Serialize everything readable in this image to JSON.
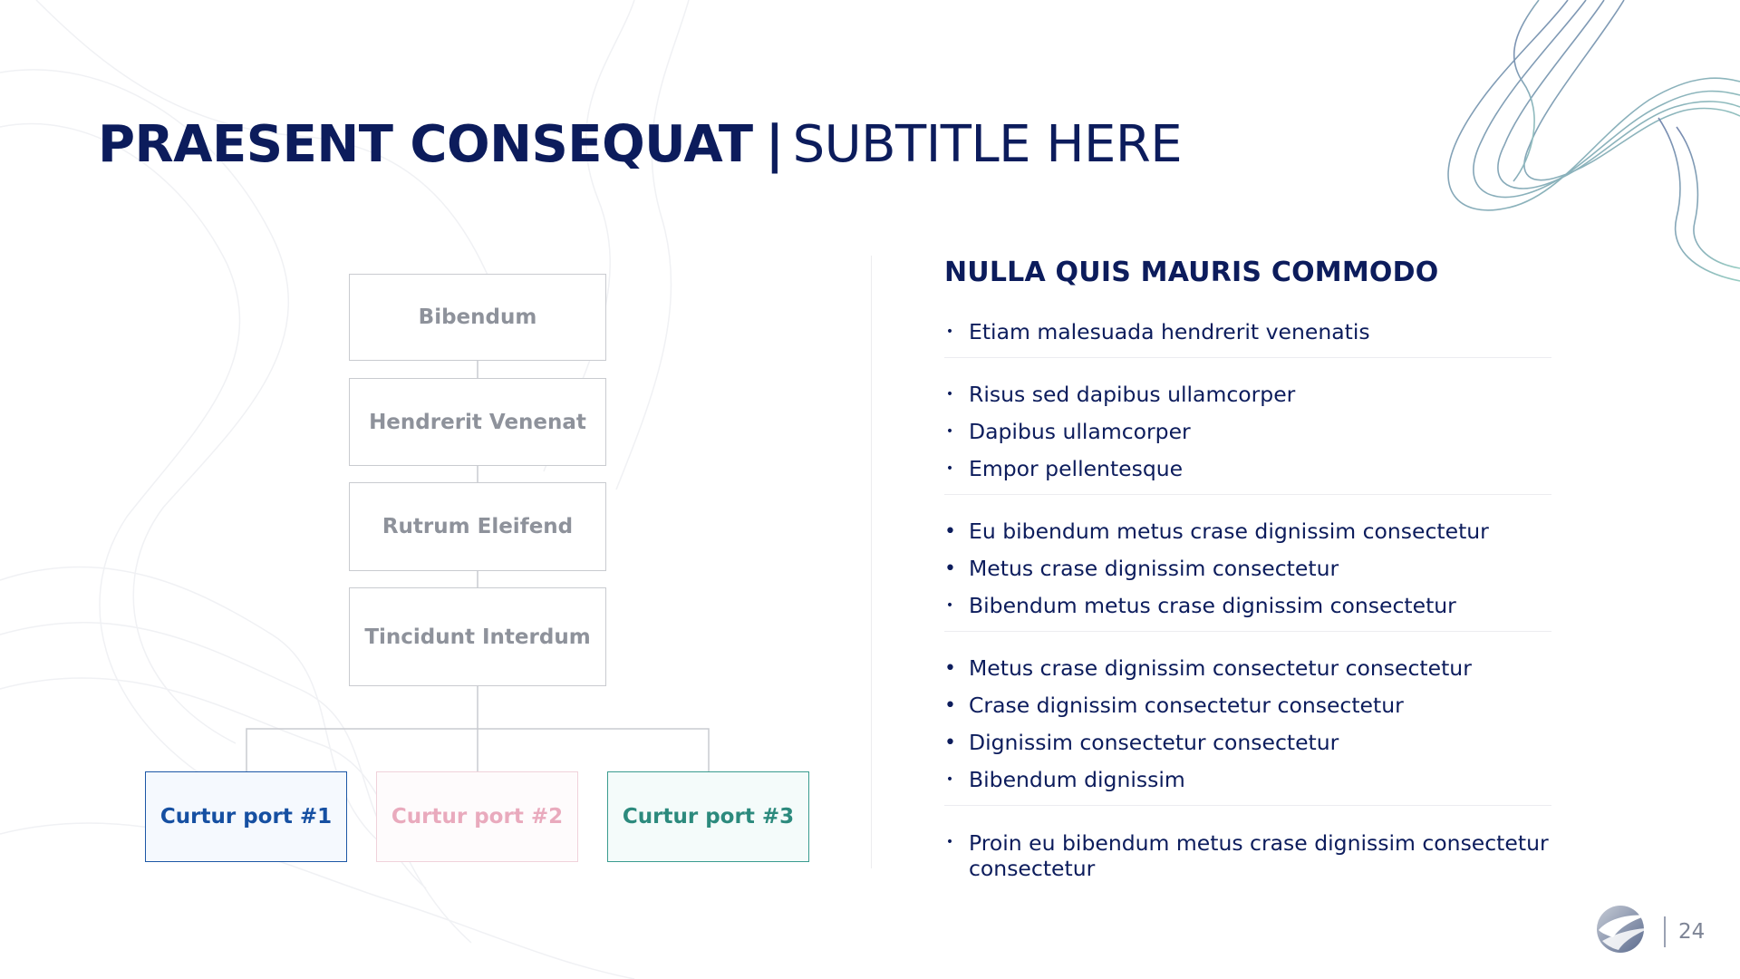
{
  "slide": {
    "title": "PRAESENT CONSEQUAT",
    "separator": "|",
    "subtitle": "SUBTITLE HERE",
    "page_number": "24"
  },
  "flowchart": {
    "nodes": [
      {
        "id": "n1",
        "label": "Bibendum"
      },
      {
        "id": "n2",
        "label": "Hendrerit Venenat"
      },
      {
        "id": "n3",
        "label": "Rutrum Eleifend"
      },
      {
        "id": "n4",
        "label": "Tincidunt Interdum"
      },
      {
        "id": "b1",
        "label": "Curtur port #1",
        "color": "#1650a2"
      },
      {
        "id": "b2",
        "label": "Curtur port #2",
        "color": "#e9aabd"
      },
      {
        "id": "b3",
        "label": "Curtur port #3",
        "color": "#2c8a7d"
      }
    ],
    "edges": [
      {
        "from": "n1",
        "to": "n2"
      },
      {
        "from": "n2",
        "to": "n3"
      },
      {
        "from": "n3",
        "to": "n4"
      },
      {
        "from": "n4",
        "to": "b1"
      },
      {
        "from": "n4",
        "to": "b2"
      },
      {
        "from": "n4",
        "to": "b3"
      }
    ]
  },
  "panel": {
    "heading": "NULLA QUIS MAURIS COMMODO",
    "groups": [
      {
        "items": [
          {
            "text": "Etiam malesuada hendrerit venenatis"
          }
        ]
      },
      {
        "items": [
          {
            "text": "Risus sed dapibus ullamcorper"
          },
          {
            "text": "Dapibus ullamcorper"
          },
          {
            "text": "Empor pellentesque"
          }
        ]
      },
      {
        "items": [
          {
            "text": "Eu bibendum metus crase dignissim consectetur"
          },
          {
            "text": "Metus crase dignissim consectetur"
          },
          {
            "text": "Bibendum metus crase dignissim consectetur"
          }
        ]
      },
      {
        "items": [
          {
            "text": "Metus crase dignissim consectetur consectetur"
          },
          {
            "text": "Crase dignissim consectetur consectetur"
          },
          {
            "text": "Dignissim consectetur consectetur"
          },
          {
            "text": "Bibendum dignissim"
          }
        ]
      },
      {
        "items": [
          {
            "text": "Proin eu bibendum metus crase dignissim consectetur consectetur"
          }
        ]
      }
    ]
  },
  "colors": {
    "navy": "#0c1c5c",
    "node_grey": "#8e929b",
    "accent_blue": "#1650a2",
    "accent_pink": "#e9aabd",
    "accent_teal": "#2c8a7d"
  }
}
